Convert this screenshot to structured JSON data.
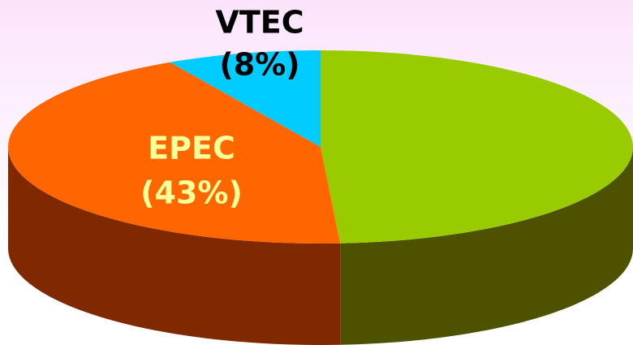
{
  "chart_data": {
    "type": "pie",
    "categories": [
      null,
      "EPEC",
      "VTEC"
    ],
    "values": [
      49,
      43,
      8
    ],
    "value_labels": [
      null,
      "(43%)",
      "(8%)"
    ],
    "colors": [
      "#99cc00",
      "#ff6600",
      "#00ccff"
    ],
    "label_colors": [
      null,
      "#ffff99",
      "#000000"
    ]
  }
}
